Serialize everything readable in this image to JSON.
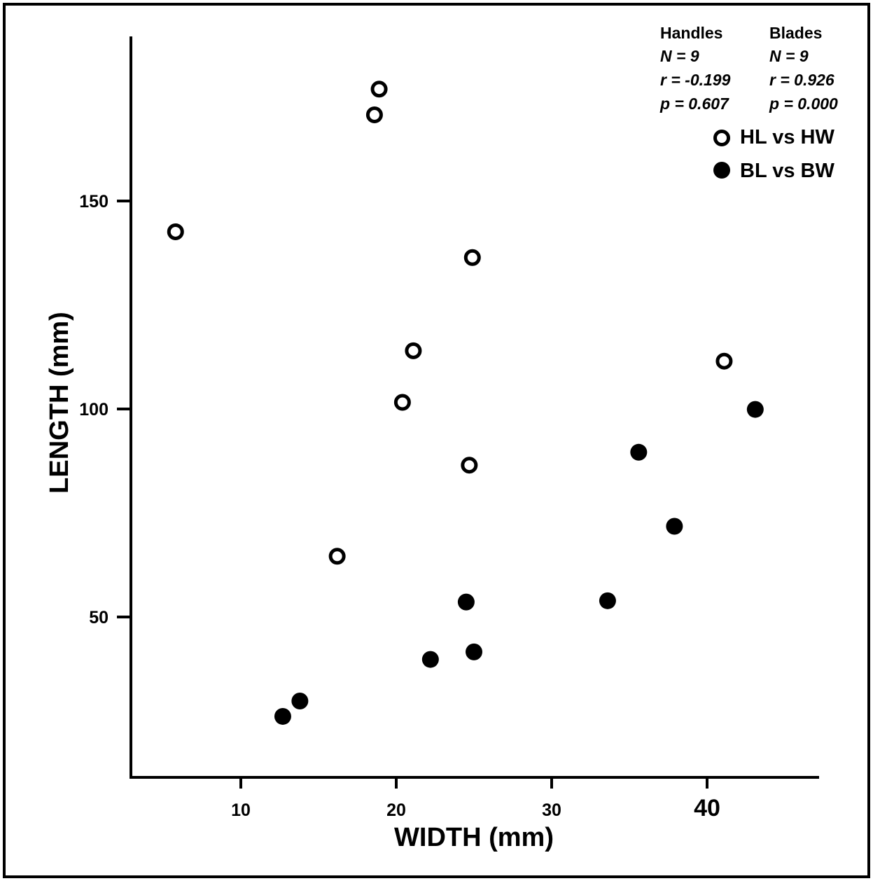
{
  "chart_data": {
    "type": "scatter",
    "xlabel": "WIDTH (mm)",
    "ylabel": "LENGTH (mm)",
    "xlim": [
      3,
      47
    ],
    "ylim": [
      5,
      190
    ],
    "xticks": [
      10,
      20,
      30,
      40
    ],
    "xtick_labels": [
      "10",
      "20",
      "30",
      "40"
    ],
    "yticks": [
      50,
      100,
      150
    ],
    "ytick_labels": [
      "50",
      "100",
      "150"
    ],
    "grid": false,
    "legend_position": "top-right",
    "series": [
      {
        "name": "HL vs HW",
        "marker": "open-circle",
        "x": [
          5.8,
          18.6,
          18.9,
          24.9,
          21.1,
          20.4,
          24.7,
          16.2,
          41.1
        ],
        "y": [
          142.6,
          170.7,
          176.9,
          136.4,
          114.0,
          101.6,
          86.5,
          64.6,
          111.5
        ]
      },
      {
        "name": "BL vs BW",
        "marker": "filled-circle",
        "x": [
          12.7,
          13.8,
          22.2,
          24.5,
          25.0,
          33.6,
          35.6,
          37.9,
          43.1
        ],
        "y": [
          26.1,
          29.8,
          39.8,
          53.6,
          41.6,
          53.9,
          89.6,
          71.8,
          99.9
        ]
      }
    ],
    "stats": [
      {
        "title": "Handles",
        "n": "N = 9",
        "r": "r = -0.199",
        "p": "p = 0.607"
      },
      {
        "title": "Blades",
        "n": "N = 9",
        "r": "r = 0.926",
        "p": "p = 0.000"
      }
    ]
  },
  "colors": {
    "ink": "#000000",
    "background": "#ffffff"
  }
}
